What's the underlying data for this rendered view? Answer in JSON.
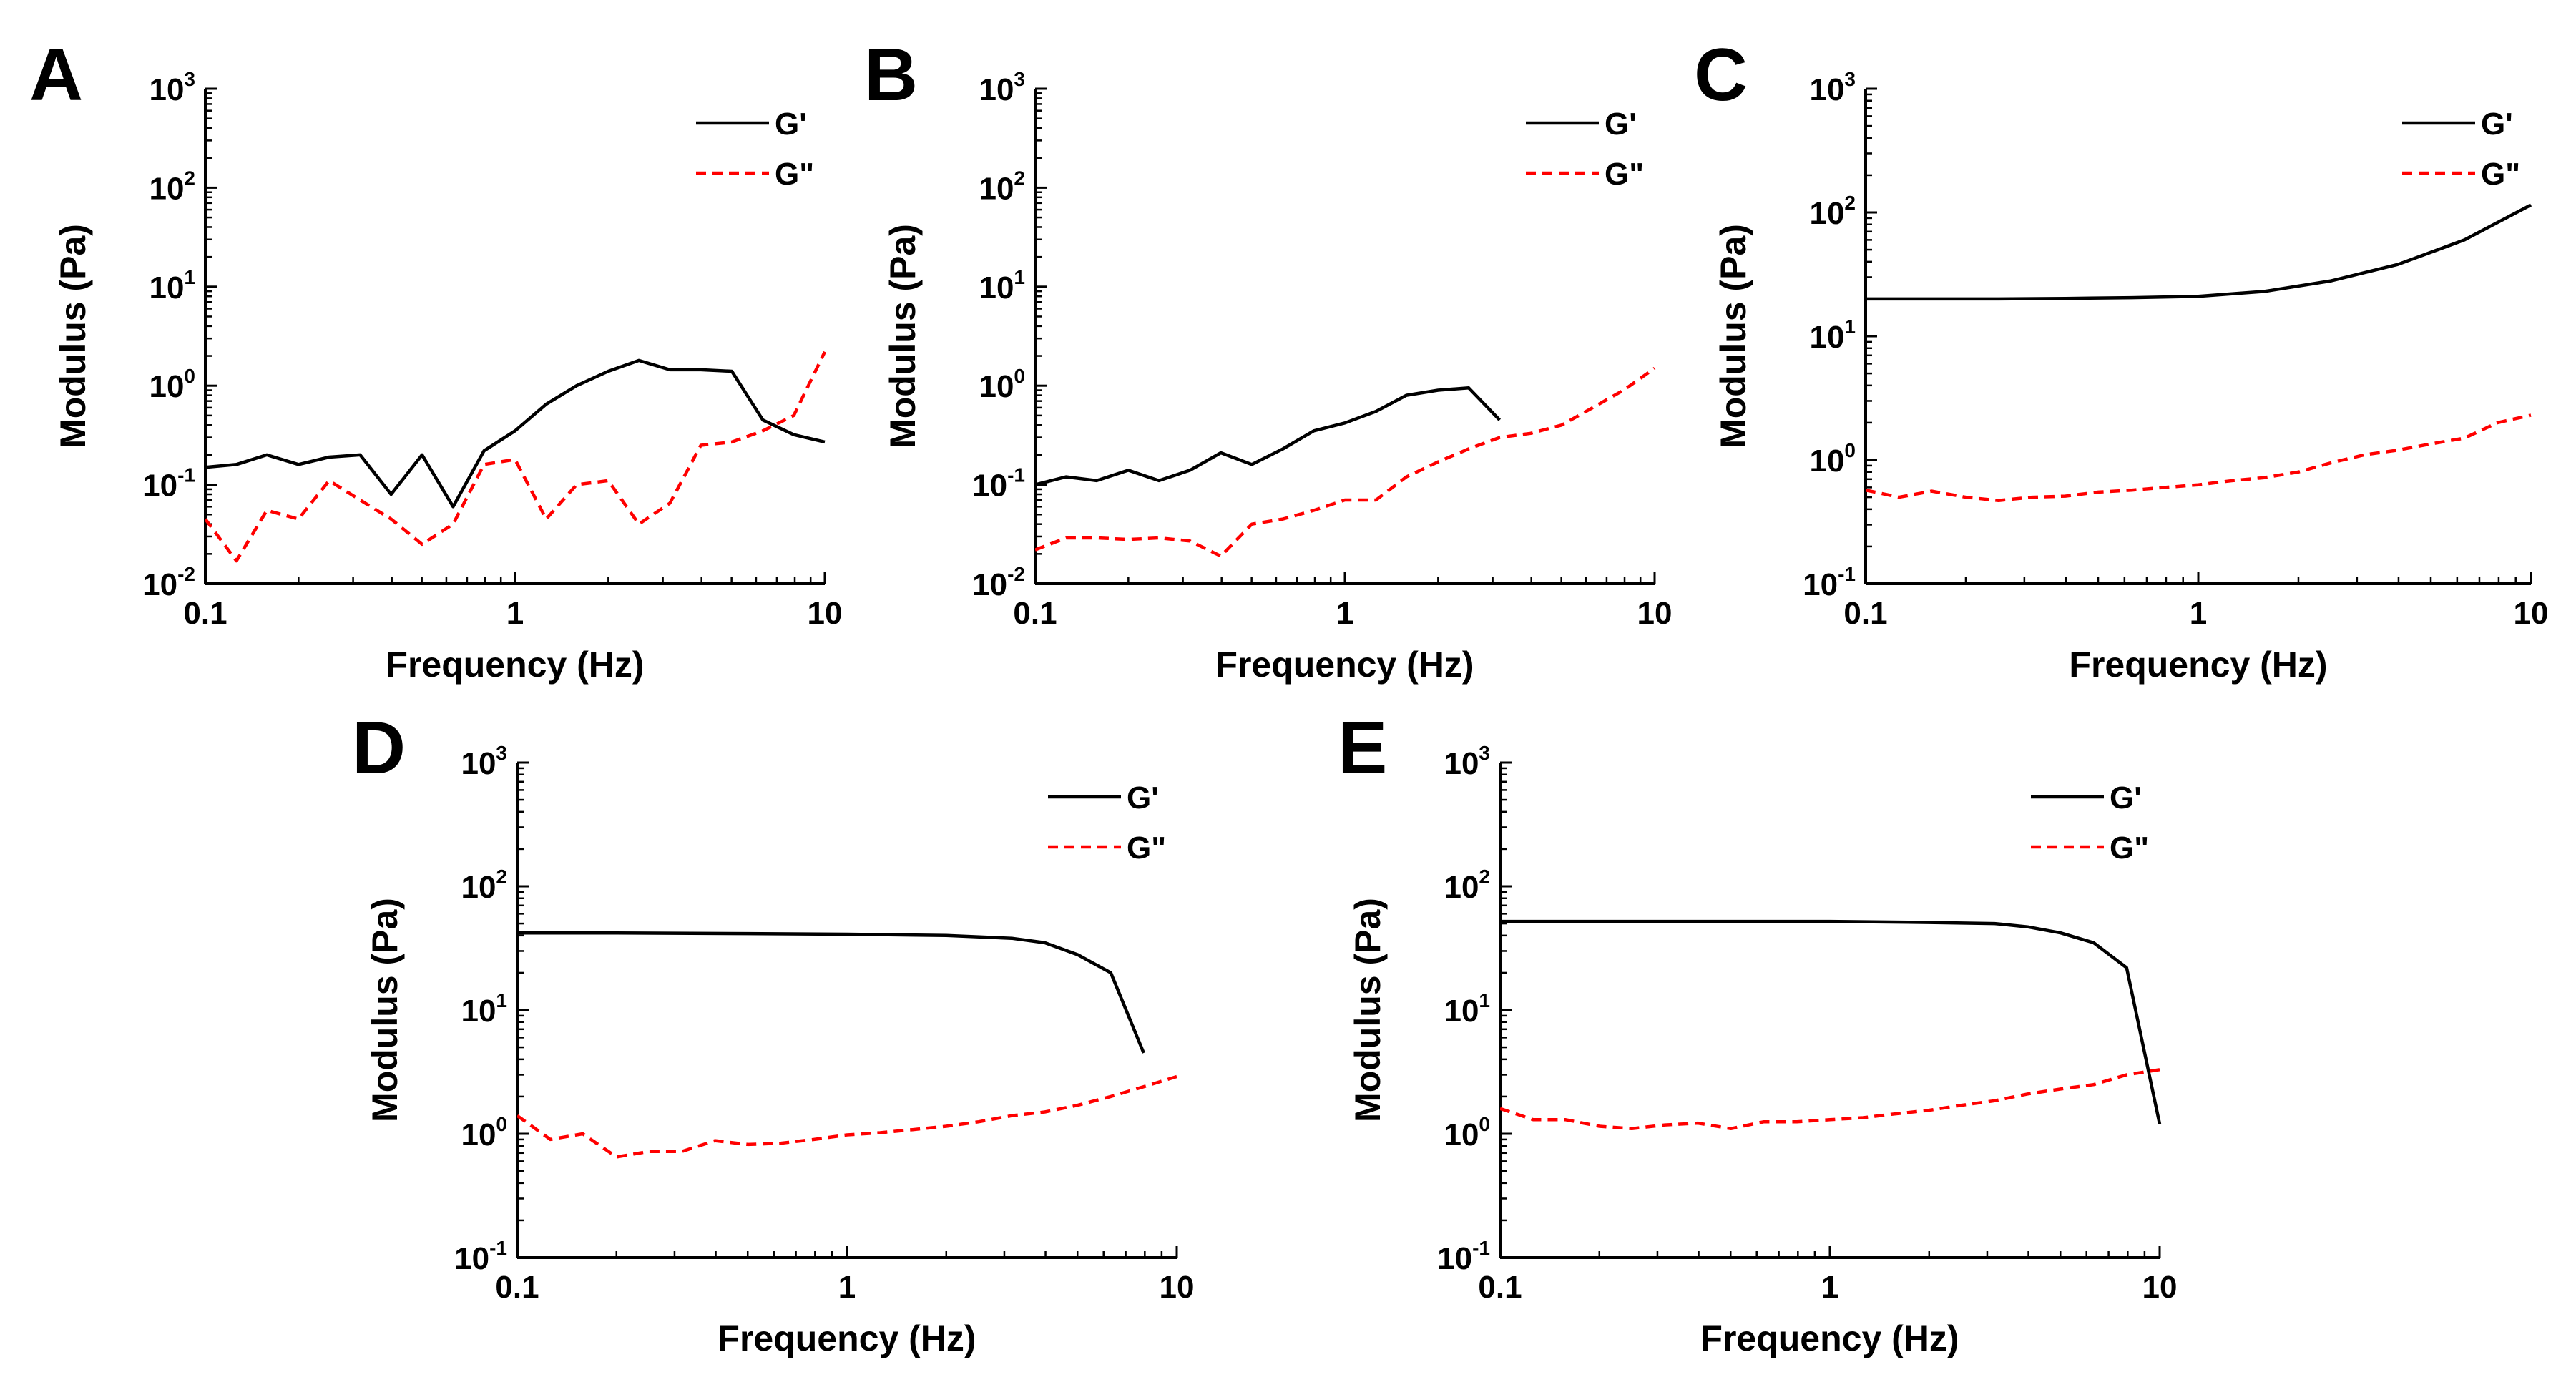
{
  "figure": {
    "chart_data": [
      {
        "type": "line",
        "panel_label": "A",
        "xscale": "log",
        "yscale": "log",
        "xlim": [
          0.1,
          10
        ],
        "ylim": [
          0.01,
          1000
        ],
        "xticks": [
          "0.1",
          "1",
          "10"
        ],
        "yticks": [
          {
            "base": "10",
            "exp": "-2"
          },
          {
            "base": "10",
            "exp": "-1"
          },
          {
            "base": "10",
            "exp": "0"
          },
          {
            "base": "10",
            "exp": "1"
          },
          {
            "base": "10",
            "exp": "2"
          },
          {
            "base": "10",
            "exp": "3"
          }
        ],
        "xlabel": "Frequency (Hz)",
        "ylabel": "Modulus (Pa)",
        "legend_position": "top-right",
        "series": [
          {
            "name": "G'",
            "style": "solid",
            "color": "#000000",
            "x": [
              0.1,
              0.126,
              0.158,
              0.2,
              0.251,
              0.316,
              0.398,
              0.501,
              0.631,
              0.794,
              1.0,
              1.26,
              1.58,
              2.0,
              2.51,
              3.16,
              3.98,
              5.01,
              6.31,
              7.94,
              10.0
            ],
            "y": [
              0.15,
              0.16,
              0.2,
              0.16,
              0.19,
              0.2,
              0.08,
              0.2,
              0.06,
              0.22,
              0.35,
              0.65,
              1.0,
              1.4,
              1.8,
              1.45,
              1.45,
              1.4,
              0.45,
              0.32,
              0.27
            ]
          },
          {
            "name": "G\"",
            "style": "dashed",
            "color": "#ff0000",
            "x": [
              0.1,
              0.126,
              0.158,
              0.2,
              0.251,
              0.316,
              0.398,
              0.501,
              0.631,
              0.794,
              1.0,
              1.26,
              1.58,
              2.0,
              2.51,
              3.16,
              3.98,
              5.01,
              6.31,
              7.94,
              10.0
            ],
            "y": [
              0.045,
              0.017,
              0.055,
              0.045,
              0.11,
              0.07,
              0.045,
              0.025,
              0.04,
              0.16,
              0.18,
              0.045,
              0.1,
              0.11,
              0.04,
              0.065,
              0.25,
              0.27,
              0.35,
              0.5,
              2.2
            ]
          }
        ]
      },
      {
        "type": "line",
        "panel_label": "B",
        "xscale": "log",
        "yscale": "log",
        "xlim": [
          0.1,
          10
        ],
        "ylim": [
          0.01,
          1000
        ],
        "xticks": [
          "0.1",
          "1",
          "10"
        ],
        "yticks": [
          {
            "base": "10",
            "exp": "-2"
          },
          {
            "base": "10",
            "exp": "-1"
          },
          {
            "base": "10",
            "exp": "0"
          },
          {
            "base": "10",
            "exp": "1"
          },
          {
            "base": "10",
            "exp": "2"
          },
          {
            "base": "10",
            "exp": "3"
          }
        ],
        "xlabel": "Frequency (Hz)",
        "ylabel": "Modulus (Pa)",
        "legend_position": "top-right",
        "series": [
          {
            "name": "G'",
            "style": "solid",
            "color": "#000000",
            "x": [
              0.1,
              0.126,
              0.158,
              0.2,
              0.251,
              0.316,
              0.398,
              0.501,
              0.631,
              0.794,
              1.0,
              1.26,
              1.58,
              2.0,
              2.51,
              3.16
            ],
            "y": [
              0.1,
              0.12,
              0.11,
              0.14,
              0.11,
              0.14,
              0.21,
              0.16,
              0.23,
              0.35,
              0.42,
              0.55,
              0.8,
              0.9,
              0.95,
              0.45
            ]
          },
          {
            "name": "G\"",
            "style": "dashed",
            "color": "#ff0000",
            "x": [
              0.1,
              0.126,
              0.158,
              0.2,
              0.251,
              0.316,
              0.398,
              0.501,
              0.631,
              0.794,
              1.0,
              1.26,
              1.58,
              2.0,
              2.51,
              3.16,
              3.98,
              5.01,
              6.31,
              7.94,
              10.0
            ],
            "y": [
              0.022,
              0.029,
              0.029,
              0.028,
              0.029,
              0.027,
              0.019,
              0.04,
              0.045,
              0.055,
              0.07,
              0.07,
              0.12,
              0.17,
              0.23,
              0.3,
              0.33,
              0.4,
              0.6,
              0.9,
              1.5
            ]
          }
        ]
      },
      {
        "type": "line",
        "panel_label": "C",
        "xscale": "log",
        "yscale": "log",
        "xlim": [
          0.1,
          10
        ],
        "ylim": [
          0.1,
          1000
        ],
        "xticks": [
          "0.1",
          "1",
          "10"
        ],
        "yticks": [
          {
            "base": "10",
            "exp": "-1"
          },
          {
            "base": "10",
            "exp": "0"
          },
          {
            "base": "10",
            "exp": "1"
          },
          {
            "base": "10",
            "exp": "2"
          },
          {
            "base": "10",
            "exp": "3"
          }
        ],
        "xlabel": "Frequency (Hz)",
        "ylabel": "Modulus (Pa)",
        "legend_position": "top-right",
        "series": [
          {
            "name": "G'",
            "style": "solid",
            "color": "#000000",
            "x": [
              0.1,
              0.158,
              0.251,
              0.398,
              0.631,
              1.0,
              1.58,
              2.51,
              3.98,
              6.31,
              10.0
            ],
            "y": [
              20,
              20,
              20,
              20.2,
              20.5,
              21,
              23,
              28,
              38,
              60,
              115
            ]
          },
          {
            "name": "G\"",
            "style": "dashed",
            "color": "#ff0000",
            "x": [
              0.1,
              0.126,
              0.158,
              0.2,
              0.251,
              0.316,
              0.398,
              0.501,
              0.631,
              0.794,
              1.0,
              1.26,
              1.58,
              2.0,
              2.51,
              3.16,
              3.98,
              5.01,
              6.31,
              7.94,
              10.0
            ],
            "y": [
              0.57,
              0.5,
              0.56,
              0.5,
              0.47,
              0.5,
              0.51,
              0.55,
              0.57,
              0.6,
              0.63,
              0.68,
              0.72,
              0.8,
              0.95,
              1.1,
              1.2,
              1.35,
              1.5,
              2.0,
              2.3
            ]
          }
        ]
      },
      {
        "type": "line",
        "panel_label": "D",
        "xscale": "log",
        "yscale": "log",
        "xlim": [
          0.1,
          10
        ],
        "ylim": [
          0.1,
          1000
        ],
        "xticks": [
          "0.1",
          "1",
          "10"
        ],
        "yticks": [
          {
            "base": "10",
            "exp": "-1"
          },
          {
            "base": "10",
            "exp": "0"
          },
          {
            "base": "10",
            "exp": "1"
          },
          {
            "base": "10",
            "exp": "2"
          },
          {
            "base": "10",
            "exp": "3"
          }
        ],
        "xlabel": "Frequency (Hz)",
        "ylabel": "Modulus (Pa)",
        "legend_position": "top-right",
        "series": [
          {
            "name": "G'",
            "style": "solid",
            "color": "#000000",
            "x": [
              0.1,
              0.2,
              0.5,
              1.0,
              2.0,
              3.16,
              3.98,
              5.01,
              6.31,
              7.94
            ],
            "y": [
              42,
              42,
              41.5,
              41,
              40,
              38,
              35,
              28,
              20,
              4.5
            ]
          },
          {
            "name": "G\"",
            "style": "dashed",
            "color": "#ff0000",
            "x": [
              0.1,
              0.126,
              0.158,
              0.2,
              0.251,
              0.316,
              0.398,
              0.501,
              0.631,
              0.794,
              1.0,
              1.26,
              1.58,
              2.0,
              2.51,
              3.16,
              3.98,
              5.01,
              6.31,
              7.94,
              10.0
            ],
            "y": [
              1.4,
              0.9,
              1.0,
              0.65,
              0.72,
              0.72,
              0.88,
              0.82,
              0.84,
              0.9,
              0.98,
              1.02,
              1.08,
              1.15,
              1.25,
              1.4,
              1.5,
              1.7,
              2.0,
              2.4,
              2.9
            ]
          }
        ]
      },
      {
        "type": "line",
        "panel_label": "E",
        "xscale": "log",
        "yscale": "log",
        "xlim": [
          0.1,
          10
        ],
        "ylim": [
          0.1,
          1000
        ],
        "xticks": [
          "0.1",
          "1",
          "10"
        ],
        "yticks": [
          {
            "base": "10",
            "exp": "-1"
          },
          {
            "base": "10",
            "exp": "0"
          },
          {
            "base": "10",
            "exp": "1"
          },
          {
            "base": "10",
            "exp": "2"
          },
          {
            "base": "10",
            "exp": "3"
          }
        ],
        "xlabel": "Frequency (Hz)",
        "ylabel": "Modulus (Pa)",
        "legend_position": "top-right",
        "series": [
          {
            "name": "G'",
            "style": "solid",
            "color": "#000000",
            "x": [
              0.1,
              0.2,
              0.5,
              1.0,
              2.0,
              3.16,
              3.98,
              5.01,
              6.31,
              7.94,
              10.0
            ],
            "y": [
              52,
              52,
              52,
              52,
              51,
              50,
              47,
              42,
              35,
              22,
              1.2
            ]
          },
          {
            "name": "G\"",
            "style": "dashed",
            "color": "#ff0000",
            "x": [
              0.1,
              0.126,
              0.158,
              0.2,
              0.251,
              0.316,
              0.398,
              0.501,
              0.631,
              0.794,
              1.0,
              1.26,
              1.58,
              2.0,
              2.51,
              3.16,
              3.98,
              5.01,
              6.31,
              7.94,
              10.0
            ],
            "y": [
              1.6,
              1.3,
              1.3,
              1.15,
              1.1,
              1.18,
              1.22,
              1.1,
              1.25,
              1.25,
              1.3,
              1.35,
              1.45,
              1.55,
              1.7,
              1.85,
              2.1,
              2.3,
              2.5,
              3.0,
              3.3
            ]
          }
        ]
      }
    ]
  }
}
